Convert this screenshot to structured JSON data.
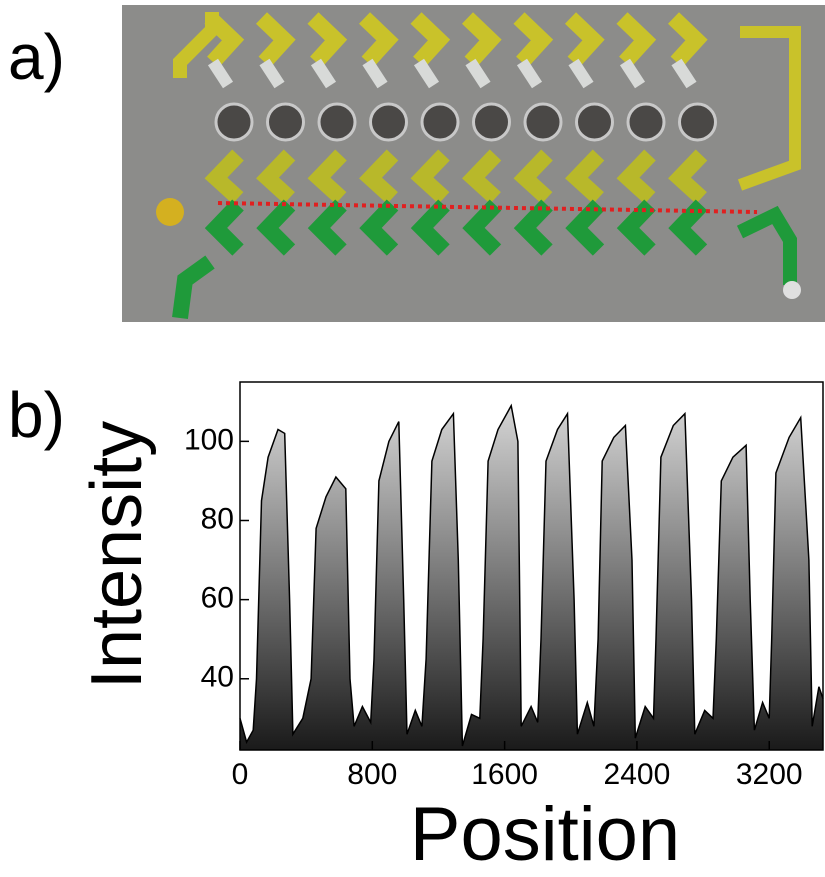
{
  "panel_labels": [
    "a)",
    "b)"
  ],
  "chart_data": {
    "type": "area",
    "x_label": "Position",
    "y_label": "Intensity",
    "x": [
      0,
      40,
      80,
      100,
      130,
      170,
      230,
      270,
      300,
      320,
      380,
      430,
      460,
      520,
      580,
      640,
      665,
      690,
      740,
      790,
      810,
      840,
      900,
      960,
      990,
      1010,
      1060,
      1100,
      1125,
      1160,
      1220,
      1290,
      1320,
      1345,
      1400,
      1450,
      1470,
      1500,
      1560,
      1640,
      1680,
      1700,
      1760,
      1800,
      1820,
      1850,
      1920,
      1980,
      2020,
      2040,
      2100,
      2140,
      2165,
      2190,
      2260,
      2330,
      2370,
      2390,
      2450,
      2500,
      2515,
      2545,
      2620,
      2690,
      2730,
      2750,
      2810,
      2860,
      2880,
      2910,
      2980,
      3060,
      3085,
      3110,
      3160,
      3200,
      3215,
      3240,
      3320,
      3390,
      3440,
      3460,
      3500,
      3525
    ],
    "values": [
      30,
      24,
      27,
      40,
      85,
      96,
      103,
      102,
      60,
      26,
      30,
      40,
      78,
      86,
      91,
      88,
      40,
      28,
      33,
      29,
      45,
      90,
      100,
      105,
      60,
      26,
      32,
      28,
      45,
      95,
      103,
      107,
      70,
      23,
      31,
      30,
      50,
      95,
      103,
      109,
      100,
      28,
      33,
      29,
      50,
      95,
      103,
      107,
      60,
      26,
      34,
      28,
      50,
      95,
      101,
      104,
      70,
      25,
      33,
      30,
      50,
      96,
      104,
      107,
      60,
      26,
      32,
      30,
      50,
      90,
      96,
      99,
      60,
      27,
      34,
      30,
      50,
      92,
      101,
      106,
      70,
      28,
      38,
      35
    ],
    "xlim": [
      0,
      3525
    ],
    "ylim": [
      22,
      115
    ],
    "xticks": [
      0,
      800,
      1600,
      2400,
      3200
    ],
    "yticks": [
      40,
      60,
      80,
      100
    ]
  }
}
